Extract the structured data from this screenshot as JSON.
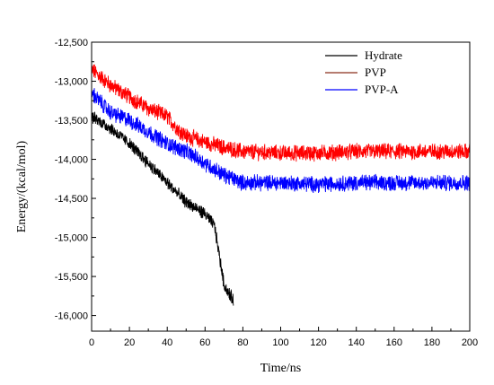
{
  "chart_data": {
    "type": "line",
    "title": "",
    "xlabel": "Time/ns",
    "ylabel": "Energy/(kcal/mol)",
    "xlim": [
      0,
      200
    ],
    "ylim": [
      -16200,
      -12500
    ],
    "x_ticks": [
      0,
      20,
      40,
      60,
      80,
      100,
      120,
      140,
      160,
      180,
      200
    ],
    "y_ticks": [
      -12500,
      -13000,
      -13500,
      -14000,
      -14500,
      -15000,
      -15500,
      -16000
    ],
    "x_tick_labels": [
      "0",
      "20",
      "40",
      "60",
      "80",
      "100",
      "120",
      "140",
      "160",
      "180",
      "200"
    ],
    "y_tick_labels": [
      "-12,500",
      "-13,000",
      "-13,500",
      "-14,000",
      "-14,500",
      "-15,000",
      "-15,500",
      "-16,000"
    ],
    "grid": false,
    "legend_position": "top-right",
    "series": [
      {
        "name": "Hydrate",
        "color": "#000000",
        "noise": 70,
        "x": [
          0,
          10,
          20,
          30,
          40,
          50,
          60,
          65,
          68,
          70,
          72,
          75
        ],
        "y": [
          -13450,
          -13600,
          -13800,
          -14050,
          -14300,
          -14550,
          -14700,
          -14850,
          -15300,
          -15600,
          -15700,
          -15800
        ]
      },
      {
        "name": "PVP",
        "color": "#ff0000",
        "noise": 90,
        "x": [
          0,
          10,
          20,
          30,
          40,
          45,
          50,
          60,
          70,
          80,
          100,
          120,
          140,
          160,
          180,
          200
        ],
        "y": [
          -12850,
          -13050,
          -13200,
          -13350,
          -13450,
          -13600,
          -13700,
          -13780,
          -13850,
          -13900,
          -13920,
          -13920,
          -13900,
          -13900,
          -13900,
          -13900
        ]
      },
      {
        "name": "PVP-A",
        "color": "#0000ff",
        "noise": 90,
        "x": [
          0,
          10,
          20,
          30,
          40,
          50,
          60,
          70,
          80,
          100,
          120,
          140,
          160,
          180,
          200
        ],
        "y": [
          -13150,
          -13400,
          -13500,
          -13650,
          -13800,
          -13900,
          -14050,
          -14200,
          -14300,
          -14300,
          -14320,
          -14300,
          -14300,
          -14300,
          -14300
        ]
      }
    ]
  }
}
